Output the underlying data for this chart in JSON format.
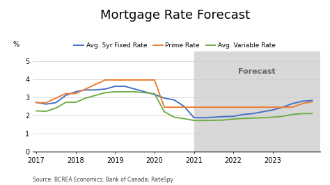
{
  "title": "Mortgage Rate Forecast",
  "source_text": "Source: BCREA Economics; Bank of Canada; RateSpy",
  "forecast_label": "Forecast",
  "forecast_start": 2021.0,
  "ylabel": "%",
  "ylim": [
    0,
    5.5
  ],
  "yticks": [
    0,
    1,
    2,
    3,
    4,
    5
  ],
  "xlim": [
    2016.92,
    2024.2
  ],
  "xticks": [
    2017,
    2018,
    2019,
    2020,
    2021,
    2022,
    2023
  ],
  "background_color": "#ffffff",
  "forecast_bg_color": "#d8d8d8",
  "series": {
    "fixed": {
      "label": "Avg. 5yr Fixed Rate",
      "color": "#4472c4",
      "x": [
        2017.0,
        2017.25,
        2017.5,
        2017.75,
        2018.0,
        2018.25,
        2018.5,
        2018.75,
        2019.0,
        2019.25,
        2019.5,
        2019.75,
        2020.0,
        2020.25,
        2020.5,
        2020.75,
        2021.0,
        2021.25,
        2021.5,
        2021.75,
        2022.0,
        2022.25,
        2022.5,
        2022.75,
        2023.0,
        2023.25,
        2023.5,
        2023.75,
        2024.0
      ],
      "y": [
        2.72,
        2.62,
        2.7,
        3.1,
        3.3,
        3.4,
        3.4,
        3.45,
        3.6,
        3.6,
        3.45,
        3.3,
        3.15,
        2.95,
        2.85,
        2.5,
        1.88,
        1.87,
        1.9,
        1.93,
        1.95,
        2.05,
        2.1,
        2.2,
        2.3,
        2.45,
        2.65,
        2.78,
        2.82
      ]
    },
    "prime": {
      "label": "Prime Rate",
      "color": "#ed7d31",
      "x": [
        2017.0,
        2017.25,
        2017.5,
        2017.75,
        2018.0,
        2018.25,
        2018.5,
        2018.75,
        2019.0,
        2019.25,
        2019.5,
        2019.75,
        2020.0,
        2020.25,
        2020.5,
        2020.75,
        2021.0,
        2021.25,
        2021.5,
        2021.75,
        2022.0,
        2022.25,
        2022.5,
        2022.75,
        2023.0,
        2023.25,
        2023.5,
        2023.75,
        2024.0
      ],
      "y": [
        2.7,
        2.7,
        2.95,
        3.2,
        3.2,
        3.45,
        3.7,
        3.95,
        3.95,
        3.95,
        3.95,
        3.95,
        3.95,
        2.45,
        2.45,
        2.45,
        2.45,
        2.45,
        2.45,
        2.45,
        2.45,
        2.45,
        2.45,
        2.45,
        2.45,
        2.45,
        2.45,
        2.65,
        2.75
      ]
    },
    "variable": {
      "label": "Avg. Variable Rate",
      "color": "#70ad47",
      "x": [
        2017.0,
        2017.25,
        2017.5,
        2017.75,
        2018.0,
        2018.25,
        2018.5,
        2018.75,
        2019.0,
        2019.25,
        2019.5,
        2019.75,
        2020.0,
        2020.25,
        2020.5,
        2020.75,
        2021.0,
        2021.25,
        2021.5,
        2021.75,
        2022.0,
        2022.25,
        2022.5,
        2022.75,
        2023.0,
        2023.25,
        2023.5,
        2023.75,
        2024.0
      ],
      "y": [
        2.25,
        2.22,
        2.4,
        2.72,
        2.72,
        2.95,
        3.1,
        3.25,
        3.3,
        3.3,
        3.3,
        3.25,
        3.2,
        2.2,
        1.9,
        1.82,
        1.72,
        1.72,
        1.73,
        1.74,
        1.8,
        1.83,
        1.85,
        1.87,
        1.9,
        1.95,
        2.05,
        2.1,
        2.1
      ]
    }
  },
  "title_fontsize": 13,
  "legend_fontsize": 6.5,
  "tick_fontsize": 7,
  "source_fontsize": 5.5
}
